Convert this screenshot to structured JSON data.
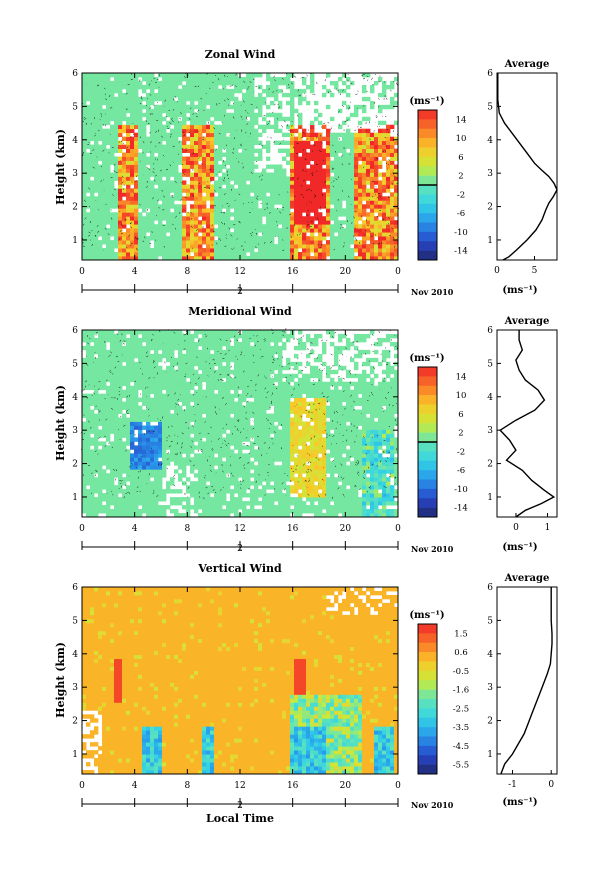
{
  "colors": {
    "ink": "#000000",
    "background": "#ffffff"
  },
  "xlabel": "Local Time",
  "date_label": "2",
  "month_label": "Nov 2010",
  "colorbar_unit": "(ms⁻¹)",
  "average_title": "Average",
  "average_unit": "(ms⁻¹)",
  "ylabel": "Height (km)",
  "chart_data": [
    {
      "type": "heatmap",
      "title": "Zonal Wind",
      "ylabel": "Height (km)",
      "xlabel": "",
      "x_ticks": [
        "0",
        "4",
        "8",
        "12",
        "16",
        "20",
        "0"
      ],
      "xlim": [
        0,
        24
      ],
      "y_ticks": [
        "1",
        "2",
        "3",
        "4",
        "5",
        "6"
      ],
      "ylim": [
        0.4,
        6
      ],
      "colorbar": {
        "ticks": [
          "14",
          "10",
          "6",
          "2",
          "-2",
          "-6",
          "-10",
          "-14"
        ],
        "range": [
          -16,
          16
        ],
        "palette": "jet"
      },
      "average_profile": {
        "x_ticks": [
          "0",
          "5"
        ],
        "xlim": [
          0,
          8
        ],
        "y_ticks": [
          "1",
          "2",
          "3",
          "4",
          "5",
          "6"
        ],
        "height": [
          0.4,
          0.5,
          0.7,
          1.0,
          1.3,
          1.6,
          1.9,
          2.1,
          2.3,
          2.5,
          2.7,
          2.9,
          3.1,
          3.3,
          3.6,
          3.9,
          4.2,
          4.5,
          4.8,
          5.2,
          5.6,
          6.0
        ],
        "value": [
          0.8,
          1.6,
          2.6,
          4.0,
          5.2,
          6.0,
          6.5,
          6.9,
          7.5,
          8.0,
          7.6,
          6.9,
          5.9,
          5.0,
          4.0,
          3.0,
          2.0,
          1.0,
          0.3,
          0.1,
          0.1,
          0.1
        ]
      }
    },
    {
      "type": "heatmap",
      "title": "Meridional Wind",
      "ylabel": "Height (km)",
      "xlabel": "",
      "x_ticks": [
        "0",
        "4",
        "8",
        "12",
        "16",
        "20",
        "0"
      ],
      "xlim": [
        0,
        24
      ],
      "y_ticks": [
        "1",
        "2",
        "3",
        "4",
        "5",
        "6"
      ],
      "ylim": [
        0.4,
        6
      ],
      "colorbar": {
        "ticks": [
          "14",
          "10",
          "6",
          "2",
          "-2",
          "-6",
          "-10",
          "-14"
        ],
        "range": [
          -16,
          16
        ],
        "palette": "jet"
      },
      "average_profile": {
        "x_ticks": [
          "0",
          "1"
        ],
        "xlim": [
          -0.6,
          1.3
        ],
        "y_ticks": [
          "1",
          "2",
          "3",
          "4",
          "5",
          "6"
        ],
        "height": [
          0.4,
          0.6,
          0.8,
          1.0,
          1.2,
          1.5,
          1.8,
          2.1,
          2.4,
          2.7,
          3.0,
          3.3,
          3.6,
          3.9,
          4.2,
          4.5,
          4.8,
          5.1,
          5.4,
          5.7,
          6.0
        ],
        "value": [
          0.0,
          0.3,
          0.8,
          1.2,
          0.9,
          0.5,
          0.2,
          -0.3,
          0.0,
          -0.2,
          -0.5,
          0.0,
          0.6,
          0.9,
          0.7,
          0.3,
          0.1,
          0.0,
          0.2,
          0.1,
          0.1
        ]
      }
    },
    {
      "type": "heatmap",
      "title": "Vertical Wind",
      "ylabel": "Height (km)",
      "xlabel": "Local Time",
      "x_ticks": [
        "0",
        "4",
        "8",
        "12",
        "16",
        "20",
        "0"
      ],
      "xlim": [
        0,
        24
      ],
      "y_ticks": [
        "1",
        "2",
        "3",
        "4",
        "5",
        "6"
      ],
      "ylim": [
        0.4,
        6
      ],
      "colorbar": {
        "ticks": [
          "1.5",
          "0.6",
          "-0.5",
          "-1.6",
          "-2.5",
          "-3.5",
          "-4.5",
          "-5.5"
        ],
        "range": [
          -6,
          2
        ],
        "palette": "jet"
      },
      "average_profile": {
        "x_ticks": [
          "-1",
          "0"
        ],
        "xlim": [
          -1.4,
          0.15
        ],
        "y_ticks": [
          "1",
          "2",
          "3",
          "4",
          "5",
          "6"
        ],
        "height": [
          0.4,
          0.7,
          1.0,
          1.3,
          1.6,
          1.9,
          2.2,
          2.5,
          2.8,
          3.1,
          3.4,
          3.7,
          4.0,
          4.3,
          4.6,
          5.0,
          5.5,
          6.0
        ],
        "value": [
          -1.3,
          -1.2,
          -1.0,
          -0.85,
          -0.7,
          -0.6,
          -0.5,
          -0.4,
          -0.3,
          -0.2,
          -0.1,
          -0.02,
          0.0,
          0.02,
          0.02,
          0.0,
          0.0,
          0.0
        ]
      }
    }
  ]
}
